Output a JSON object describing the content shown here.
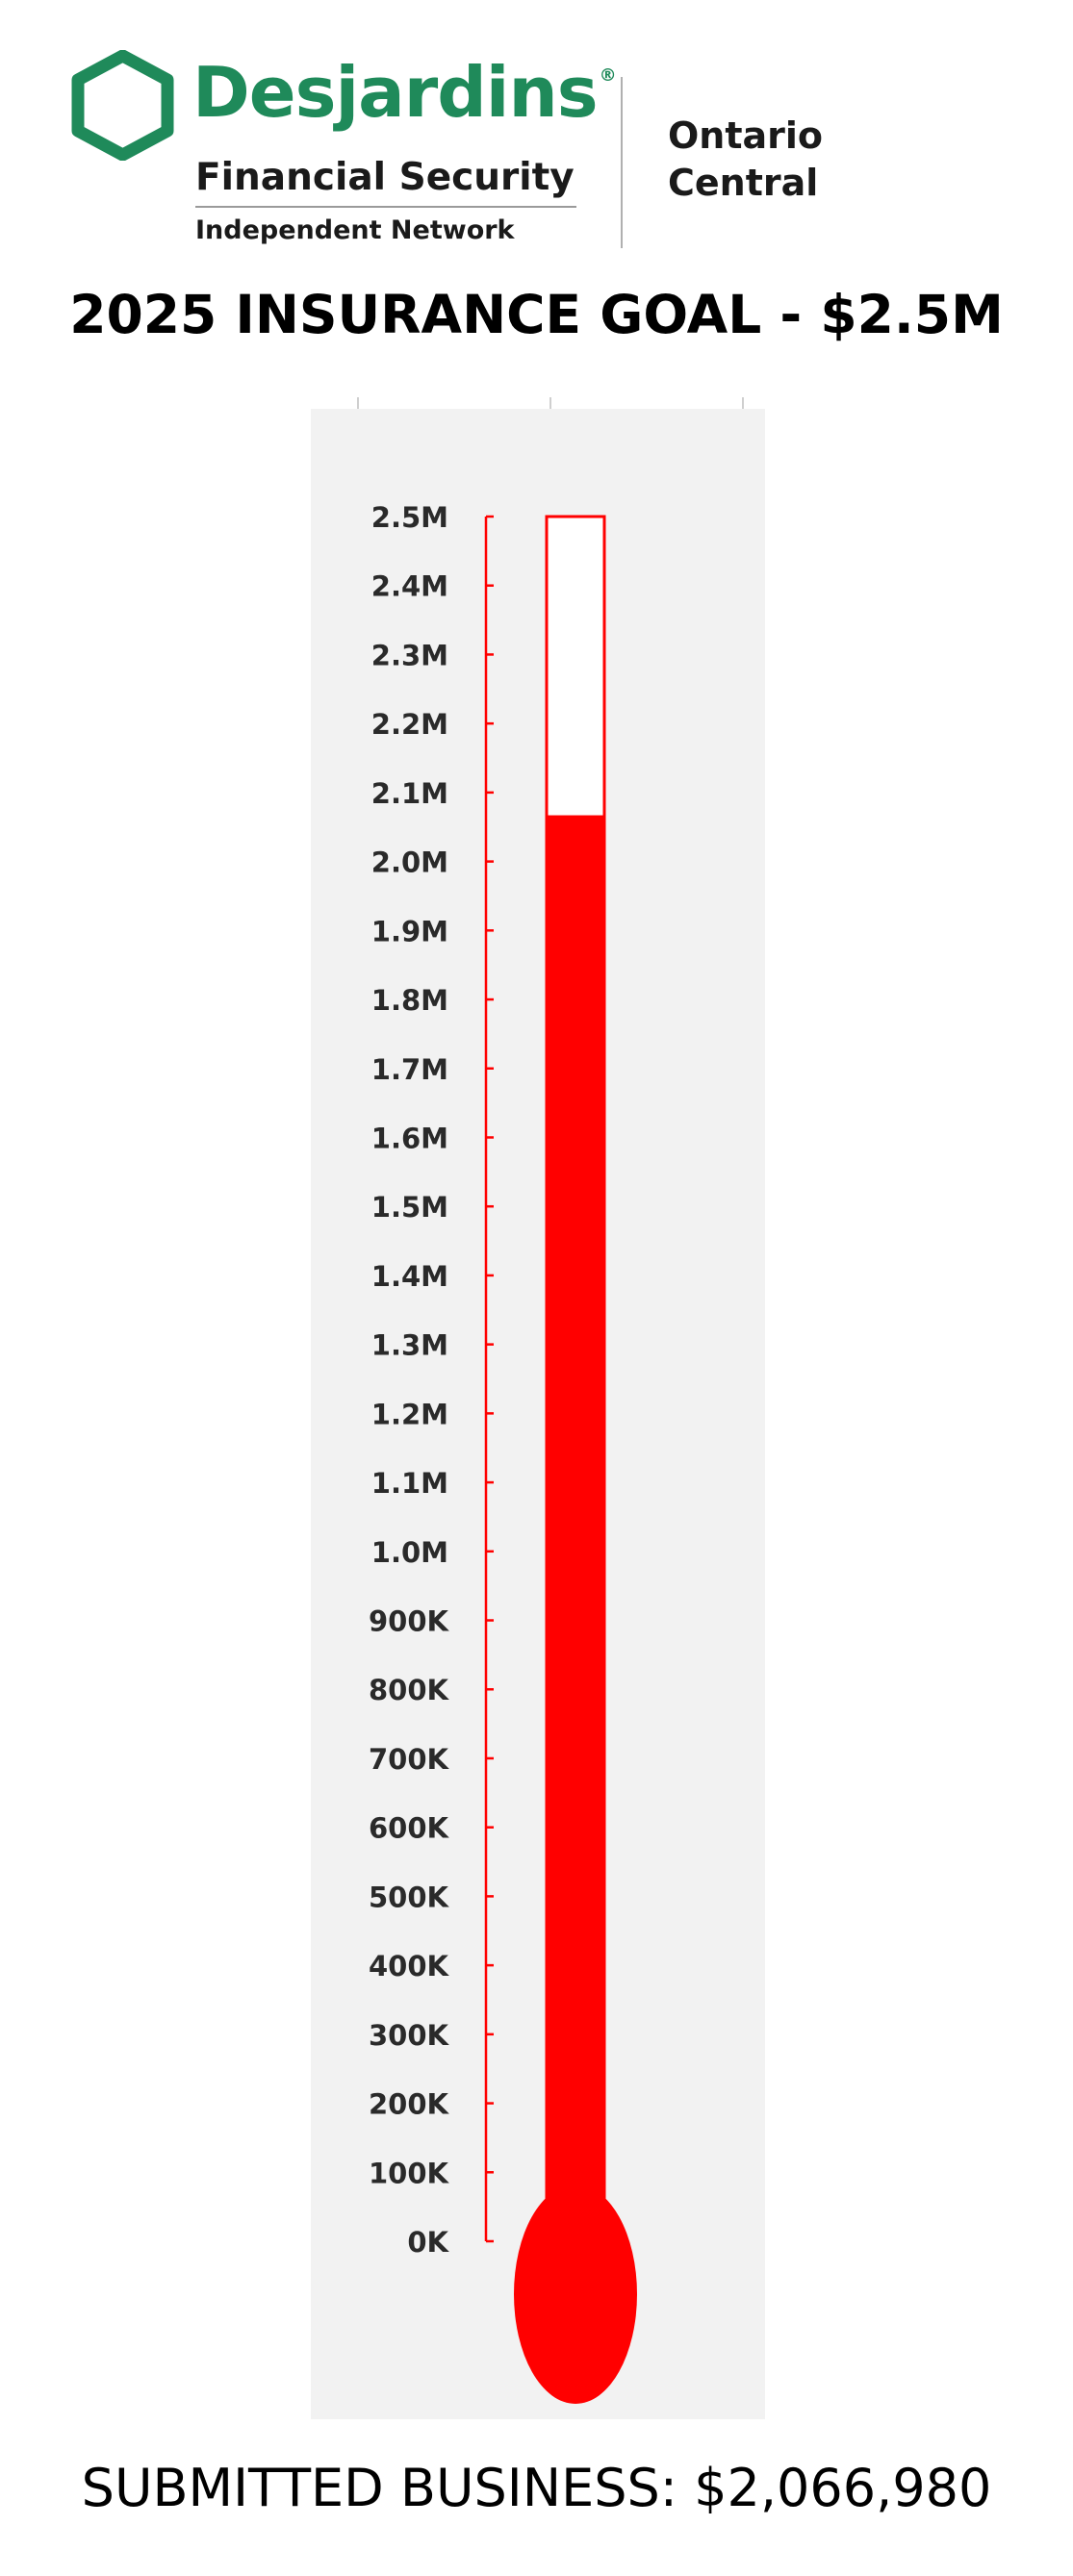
{
  "header": {
    "brand": "Desjardins",
    "brand_mark": "®",
    "subtitle_line1": "Financial Security",
    "subtitle_line2": "Independent Network",
    "region_line1": "Ontario",
    "region_line2": "Central",
    "logo_icon": "hexagon-logo-icon"
  },
  "colors": {
    "brand_green": "#1f8a5a",
    "mercury_red": "#ff0000",
    "panel_gray": "#f2f2f2"
  },
  "chart_data": {
    "type": "thermometer",
    "title": "2025 INSURANCE GOAL - $2.5M",
    "goal": 2500000,
    "value": 2066980,
    "ylim": [
      0,
      2500000
    ],
    "tick_values": [
      0,
      100000,
      200000,
      300000,
      400000,
      500000,
      600000,
      700000,
      800000,
      900000,
      1000000,
      1100000,
      1200000,
      1300000,
      1400000,
      1500000,
      1600000,
      1700000,
      1800000,
      1900000,
      2000000,
      2100000,
      2200000,
      2300000,
      2400000,
      2500000
    ],
    "tick_labels": [
      "0K",
      "100K",
      "200K",
      "300K",
      "400K",
      "500K",
      "600K",
      "700K",
      "800K",
      "900K",
      "1.0M",
      "1.1M",
      "1.2M",
      "1.3M",
      "1.4M",
      "1.5M",
      "1.6M",
      "1.7M",
      "1.8M",
      "1.9M",
      "2.0M",
      "2.1M",
      "2.2M",
      "2.3M",
      "2.4M",
      "2.5M"
    ],
    "footer": "SUBMITTED BUSINESS: $2,066,980"
  }
}
